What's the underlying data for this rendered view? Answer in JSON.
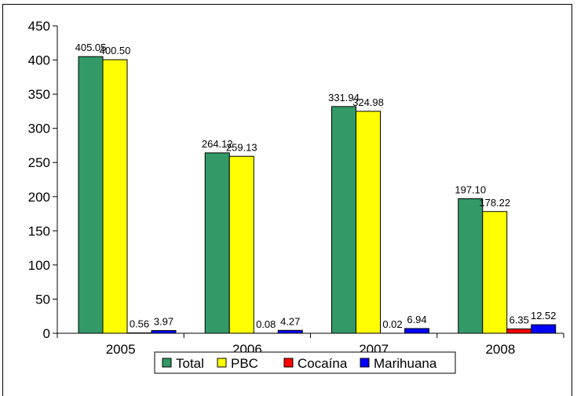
{
  "chart_data": {
    "type": "bar",
    "categories": [
      "2005",
      "2006",
      "2007",
      "2008"
    ],
    "series": [
      {
        "name": "Total",
        "color": "#339966",
        "values": [
          405.05,
          264.12,
          331.94,
          197.1
        ],
        "labels": [
          "405.05",
          "264.12",
          "331.94",
          "197.10"
        ]
      },
      {
        "name": "PBC",
        "color": "#FFFF00",
        "values": [
          400.5,
          259.13,
          324.98,
          178.22
        ],
        "labels": [
          "400.50",
          "259.13",
          "324.98",
          "178.22"
        ]
      },
      {
        "name": "Cocaína",
        "color": "#FF0000",
        "values": [
          0.56,
          0.08,
          0.02,
          6.35
        ],
        "labels": [
          "0.56",
          "0.08",
          "0.02",
          "6.35"
        ]
      },
      {
        "name": "Marihuana",
        "color": "#0000FF",
        "values": [
          3.97,
          4.27,
          6.94,
          12.52
        ],
        "labels": [
          "3.97",
          "4.27",
          "6.94",
          "12.52"
        ]
      }
    ],
    "yticks": [
      "0",
      "50",
      "100",
      "150",
      "200",
      "250",
      "300",
      "350",
      "400",
      "450"
    ],
    "ylim": [
      0,
      450
    ],
    "grid": false,
    "legend_position": "bottom",
    "title": "",
    "xlabel": "",
    "ylabel": ""
  }
}
